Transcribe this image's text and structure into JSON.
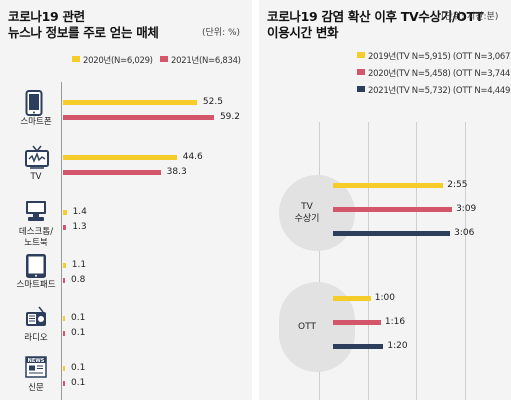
{
  "left": {
    "title_line1": "코로나19 관련",
    "title_line2": "뉴스나 정보를 주로 얻는 매체",
    "unit": "(단위: %)",
    "legend": [
      {
        "label": "2020년(N=6,029)",
        "color": "#f5cc2a"
      },
      {
        "label": "2021년(N=6,834)",
        "color": "#d4566a"
      }
    ]
  },
  "right": {
    "title_line1": "코로나19 감염 확산 이후 TV수상기/OTT",
    "title_line2": "이용시간 변화",
    "unit": "(단위: 시간:분)",
    "legend": [
      {
        "label": "2019년(TV N=5,915) (OTT N=3,067)",
        "color": "#f5cc2a"
      },
      {
        "label": "2020년(TV N=5,458) (OTT N=3,744)",
        "color": "#d4566a"
      },
      {
        "label": "2021년(TV N=5,732) (OTT N=4,449)",
        "color": "#2d3e5c"
      }
    ]
  },
  "chart_data": [
    {
      "type": "bar",
      "title": "코로나19 관련 뉴스나 정보를 주로 얻는 매체",
      "unit": "%",
      "categories": [
        "스마트폰",
        "TV",
        "데스크톱/노트북",
        "스마트패드",
        "라디오",
        "신문"
      ],
      "category_lines": [
        [
          "스마트폰"
        ],
        [
          "TV"
        ],
        [
          "데스크톱/",
          "노트북"
        ],
        [
          "스마트패드"
        ],
        [
          "라디오"
        ],
        [
          "신문"
        ]
      ],
      "category_icons": [
        "smartphone-icon",
        "tv-icon",
        "desktop-computer-icon",
        "tablet-icon",
        "radio-icon",
        "newspaper-icon"
      ],
      "series": [
        {
          "name": "2020년(N=6,029)",
          "values": [
            52.5,
            44.6,
            1.4,
            1.1,
            0.1,
            0.1
          ],
          "labels": [
            "52.5",
            "44.6",
            "1.4",
            "1.1",
            "0.1",
            "0.1"
          ],
          "color": "#f5cc2a"
        },
        {
          "name": "2021년(N=6,834)",
          "values": [
            59.2,
            38.3,
            1.3,
            0.8,
            0.1,
            0.1
          ],
          "labels": [
            "59.2",
            "38.3",
            "1.3",
            "0.8",
            "0.1",
            "0.1"
          ],
          "color": "#d4566a"
        }
      ]
    },
    {
      "type": "bar",
      "title": "코로나19 감염 확산 이후 TV수상기/OTT 이용시간 변화",
      "unit": "시간:분",
      "categories": [
        "TV 수상기",
        "OTT"
      ],
      "category_lines": [
        [
          "TV",
          "수상기"
        ],
        [
          "OTT"
        ]
      ],
      "series": [
        {
          "name": "2019년(TV N=5,915) (OTT N=3,067)",
          "values": [
            "2:55",
            "1:00"
          ],
          "color": "#f5cc2a"
        },
        {
          "name": "2020년(TV N=5,458) (OTT N=3,744)",
          "values": [
            "3:09",
            "1:16"
          ],
          "color": "#d4566a"
        },
        {
          "name": "2021년(TV N=5,732) (OTT N=4,449)",
          "values": [
            "3:06",
            "1:20"
          ],
          "color": "#2d3e5c"
        }
      ]
    }
  ]
}
